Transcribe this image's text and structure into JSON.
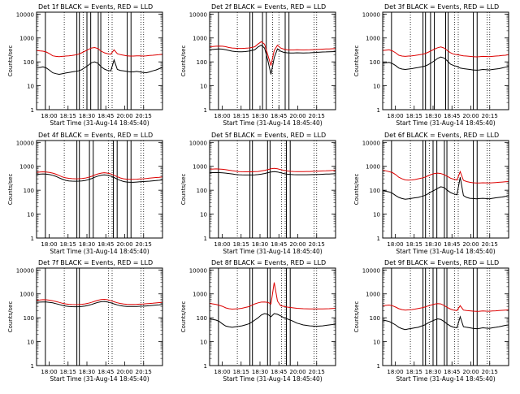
{
  "figure": {
    "xlabel": "Start Time (31-Aug-14 18:45:40)",
    "ylabel": "Counts/sec",
    "legend_text": "BLACK = Events, RED = LLD",
    "x_tick_labels": [
      "18:00",
      "18:15",
      "18:30",
      "18:45",
      "20:00",
      "20:15"
    ],
    "y_tick_labels": [
      "1",
      "10",
      "100",
      "1000",
      "10000"
    ]
  },
  "colors": {
    "events": "#000000",
    "lld": "#dd0000",
    "axis": "#000000"
  },
  "chart_data": [
    {
      "type": "line",
      "title": "Det 1f",
      "xlim": [
        0,
        100
      ],
      "ylim": [
        1,
        12000
      ],
      "yscale": "log",
      "series": [
        {
          "name": "Events",
          "values": [
            60,
            58,
            62,
            56,
            45,
            35,
            32,
            30,
            32,
            34,
            36,
            38,
            40,
            42,
            47,
            58,
            72,
            92,
            100,
            88,
            62,
            50,
            44,
            42,
            120,
            48,
            44,
            42,
            40,
            38,
            38,
            40,
            38,
            36,
            35,
            38,
            42,
            46,
            52,
            60
          ]
        },
        {
          "name": "LLD",
          "values": [
            300,
            290,
            280,
            260,
            220,
            180,
            170,
            165,
            170,
            175,
            180,
            185,
            195,
            210,
            240,
            280,
            330,
            380,
            400,
            360,
            280,
            240,
            220,
            210,
            320,
            220,
            200,
            190,
            180,
            175,
            175,
            180,
            178,
            175,
            178,
            185,
            190,
            195,
            200,
            210
          ]
        }
      ],
      "vlines_solid": [
        7,
        32,
        34,
        40,
        43,
        49,
        51,
        72,
        75
      ],
      "vlines_dotted": [
        22,
        37,
        57,
        60,
        83,
        85
      ]
    },
    {
      "type": "line",
      "title": "Det 2f",
      "xlim": [
        0,
        100
      ],
      "ylim": [
        1,
        12000
      ],
      "yscale": "log",
      "series": [
        {
          "name": "Events",
          "values": [
            330,
            330,
            340,
            350,
            340,
            320,
            300,
            280,
            270,
            265,
            265,
            270,
            280,
            300,
            320,
            420,
            500,
            380,
            120,
            30,
            150,
            350,
            280,
            250,
            240,
            235,
            235,
            240,
            238,
            236,
            238,
            240,
            245,
            250,
            255,
            260,
            262,
            265,
            268,
            270
          ]
        },
        {
          "name": "LLD",
          "values": [
            430,
            440,
            450,
            460,
            450,
            430,
            400,
            380,
            370,
            365,
            365,
            370,
            380,
            400,
            430,
            560,
            700,
            550,
            200,
            70,
            300,
            500,
            380,
            340,
            320,
            315,
            315,
            320,
            318,
            316,
            318,
            320,
            325,
            330,
            335,
            340,
            345,
            350,
            355,
            360
          ]
        }
      ],
      "vlines_solid": [
        7,
        32,
        34,
        42,
        45,
        60,
        63
      ],
      "vlines_dotted": [
        22,
        50,
        55,
        83,
        85
      ]
    },
    {
      "type": "line",
      "title": "Det 3f",
      "xlim": [
        0,
        100
      ],
      "ylim": [
        1,
        12000
      ],
      "yscale": "log",
      "series": [
        {
          "name": "Events",
          "values": [
            90,
            92,
            95,
            85,
            70,
            55,
            50,
            48,
            50,
            52,
            55,
            58,
            62,
            66,
            75,
            90,
            110,
            140,
            160,
            145,
            110,
            80,
            70,
            65,
            55,
            52,
            50,
            48,
            46,
            45,
            46,
            48,
            47,
            46,
            48,
            50,
            52,
            56,
            60,
            65
          ]
        },
        {
          "name": "LLD",
          "values": [
            300,
            310,
            320,
            290,
            240,
            190,
            175,
            170,
            175,
            180,
            185,
            195,
            205,
            220,
            250,
            290,
            340,
            390,
            420,
            380,
            300,
            240,
            210,
            200,
            190,
            180,
            175,
            170,
            165,
            162,
            165,
            170,
            168,
            165,
            170,
            175,
            180,
            185,
            190,
            200
          ]
        }
      ],
      "vlines_solid": [
        7,
        32,
        34,
        38,
        41,
        50,
        52,
        72,
        75
      ],
      "vlines_dotted": [
        22,
        57,
        60,
        83,
        85
      ]
    },
    {
      "type": "line",
      "title": "Det 4f",
      "xlim": [
        0,
        100
      ],
      "ylim": [
        1,
        12000
      ],
      "yscale": "log",
      "series": [
        {
          "name": "Events",
          "values": [
            460,
            470,
            480,
            470,
            450,
            420,
            380,
            330,
            290,
            260,
            245,
            240,
            238,
            240,
            245,
            255,
            275,
            305,
            350,
            390,
            420,
            440,
            420,
            390,
            340,
            290,
            255,
            230,
            220,
            215,
            215,
            220,
            225,
            230,
            235,
            240,
            248,
            255,
            262,
            270
          ]
        },
        {
          "name": "LLD",
          "values": [
            560,
            575,
            590,
            580,
            560,
            520,
            470,
            410,
            360,
            330,
            315,
            305,
            300,
            302,
            308,
            320,
            345,
            380,
            430,
            480,
            520,
            540,
            520,
            480,
            420,
            365,
            325,
            300,
            290,
            285,
            285,
            290,
            295,
            300,
            310,
            320,
            330,
            340,
            350,
            360
          ]
        }
      ],
      "vlines_solid": [
        7,
        32,
        34,
        42,
        45,
        61,
        64,
        72,
        75
      ],
      "vlines_dotted": [
        22,
        57,
        60,
        83,
        85
      ]
    },
    {
      "type": "line",
      "title": "Det 5f",
      "xlim": [
        0,
        100
      ],
      "ylim": [
        1,
        12000
      ],
      "yscale": "log",
      "series": [
        {
          "name": "Events",
          "values": [
            540,
            545,
            550,
            545,
            535,
            520,
            500,
            480,
            460,
            445,
            438,
            435,
            433,
            435,
            440,
            450,
            470,
            500,
            540,
            580,
            600,
            580,
            540,
            500,
            470,
            455,
            448,
            445,
            443,
            444,
            446,
            448,
            452,
            456,
            460,
            466,
            472,
            478,
            485,
            490
          ]
        },
        {
          "name": "LLD",
          "values": [
            760,
            770,
            780,
            770,
            750,
            720,
            690,
            660,
            630,
            605,
            595,
            590,
            588,
            590,
            598,
            610,
            640,
            680,
            730,
            790,
            820,
            790,
            730,
            680,
            640,
            620,
            610,
            605,
            602,
            603,
            606,
            610,
            616,
            622,
            630,
            640,
            650,
            660,
            670,
            680
          ]
        }
      ],
      "vlines_solid": [
        7,
        32,
        34,
        46,
        48,
        61,
        64
      ],
      "vlines_dotted": [
        22,
        57,
        60,
        83,
        85
      ]
    },
    {
      "type": "line",
      "title": "Det 6f",
      "xlim": [
        0,
        100
      ],
      "ylim": [
        1,
        12000
      ],
      "yscale": "log",
      "series": [
        {
          "name": "Events",
          "values": [
            100,
            90,
            85,
            75,
            60,
            50,
            45,
            42,
            44,
            46,
            48,
            50,
            55,
            60,
            70,
            85,
            100,
            120,
            140,
            130,
            100,
            80,
            70,
            65,
            350,
            60,
            50,
            46,
            45,
            44,
            45,
            46,
            45,
            44,
            46,
            48,
            50,
            52,
            55,
            60
          ]
        },
        {
          "name": "LLD",
          "values": [
            700,
            650,
            600,
            550,
            450,
            350,
            300,
            270,
            265,
            270,
            280,
            300,
            320,
            350,
            400,
            450,
            500,
            520,
            500,
            450,
            380,
            320,
            290,
            270,
            600,
            260,
            230,
            215,
            205,
            200,
            202,
            205,
            203,
            200,
            205,
            210,
            215,
            220,
            225,
            230
          ]
        }
      ],
      "vlines_solid": [
        7,
        32,
        34,
        40,
        43,
        49,
        51,
        72,
        75
      ],
      "vlines_dotted": [
        22,
        37,
        57,
        60,
        83,
        85
      ]
    },
    {
      "type": "line",
      "title": "Det 7f",
      "xlim": [
        0,
        100
      ],
      "ylim": [
        1,
        12000
      ],
      "yscale": "log",
      "series": [
        {
          "name": "Events",
          "values": [
            440,
            450,
            460,
            455,
            440,
            420,
            390,
            360,
            330,
            310,
            298,
            292,
            290,
            292,
            298,
            310,
            330,
            360,
            400,
            440,
            470,
            480,
            460,
            420,
            380,
            345,
            320,
            305,
            298,
            295,
            295,
            298,
            302,
            306,
            312,
            320,
            330,
            340,
            350,
            360
          ]
        },
        {
          "name": "LLD",
          "values": [
            540,
            555,
            570,
            565,
            545,
            515,
            480,
            440,
            405,
            380,
            365,
            358,
            355,
            358,
            365,
            380,
            405,
            440,
            490,
            540,
            575,
            590,
            565,
            515,
            465,
            425,
            395,
            375,
            365,
            362,
            362,
            365,
            370,
            378,
            386,
            395,
            405,
            418,
            430,
            440
          ]
        }
      ],
      "vlines_solid": [
        7,
        32,
        34
      ],
      "vlines_dotted": [
        22,
        57,
        60,
        83,
        85
      ]
    },
    {
      "type": "line",
      "title": "Det 8f",
      "xlim": [
        0,
        100
      ],
      "ylim": [
        1,
        12000
      ],
      "yscale": "log",
      "series": [
        {
          "name": "Events",
          "values": [
            90,
            85,
            80,
            70,
            55,
            45,
            42,
            40,
            42,
            44,
            46,
            50,
            55,
            65,
            80,
            100,
            130,
            150,
            140,
            110,
            150,
            140,
            120,
            100,
            90,
            80,
            70,
            60,
            55,
            50,
            48,
            46,
            45,
            44,
            45,
            46,
            48,
            50,
            52,
            55
          ]
        },
        {
          "name": "LLD",
          "values": [
            400,
            380,
            360,
            330,
            300,
            260,
            240,
            230,
            235,
            240,
            250,
            270,
            290,
            330,
            380,
            420,
            450,
            460,
            440,
            380,
            3000,
            500,
            320,
            300,
            280,
            270,
            260,
            250,
            245,
            240,
            238,
            236,
            235,
            234,
            235,
            236,
            238,
            240,
            245,
            250
          ]
        }
      ],
      "vlines_solid": [
        7,
        32,
        34,
        46,
        48,
        61,
        64
      ],
      "vlines_dotted": [
        22,
        57,
        60,
        83,
        85
      ]
    },
    {
      "type": "line",
      "title": "Det 9f",
      "xlim": [
        0,
        100
      ],
      "ylim": [
        1,
        12000
      ],
      "yscale": "log",
      "series": [
        {
          "name": "Events",
          "values": [
            80,
            75,
            70,
            60,
            50,
            40,
            35,
            32,
            34,
            36,
            38,
            40,
            45,
            50,
            60,
            70,
            80,
            90,
            85,
            70,
            55,
            45,
            40,
            38,
            110,
            42,
            40,
            38,
            36,
            35,
            36,
            38,
            37,
            36,
            38,
            40,
            42,
            45,
            48,
            50
          ]
        },
        {
          "name": "LLD",
          "values": [
            320,
            330,
            340,
            320,
            280,
            240,
            220,
            210,
            215,
            220,
            230,
            245,
            260,
            280,
            310,
            340,
            370,
            390,
            380,
            330,
            270,
            230,
            210,
            200,
            320,
            210,
            200,
            195,
            190,
            185,
            188,
            192,
            190,
            188,
            192,
            196,
            200,
            205,
            210,
            215
          ]
        }
      ],
      "vlines_solid": [
        7,
        32,
        34,
        40,
        43,
        49,
        51,
        72,
        75
      ],
      "vlines_dotted": [
        22,
        37,
        57,
        60,
        83,
        85
      ]
    }
  ]
}
